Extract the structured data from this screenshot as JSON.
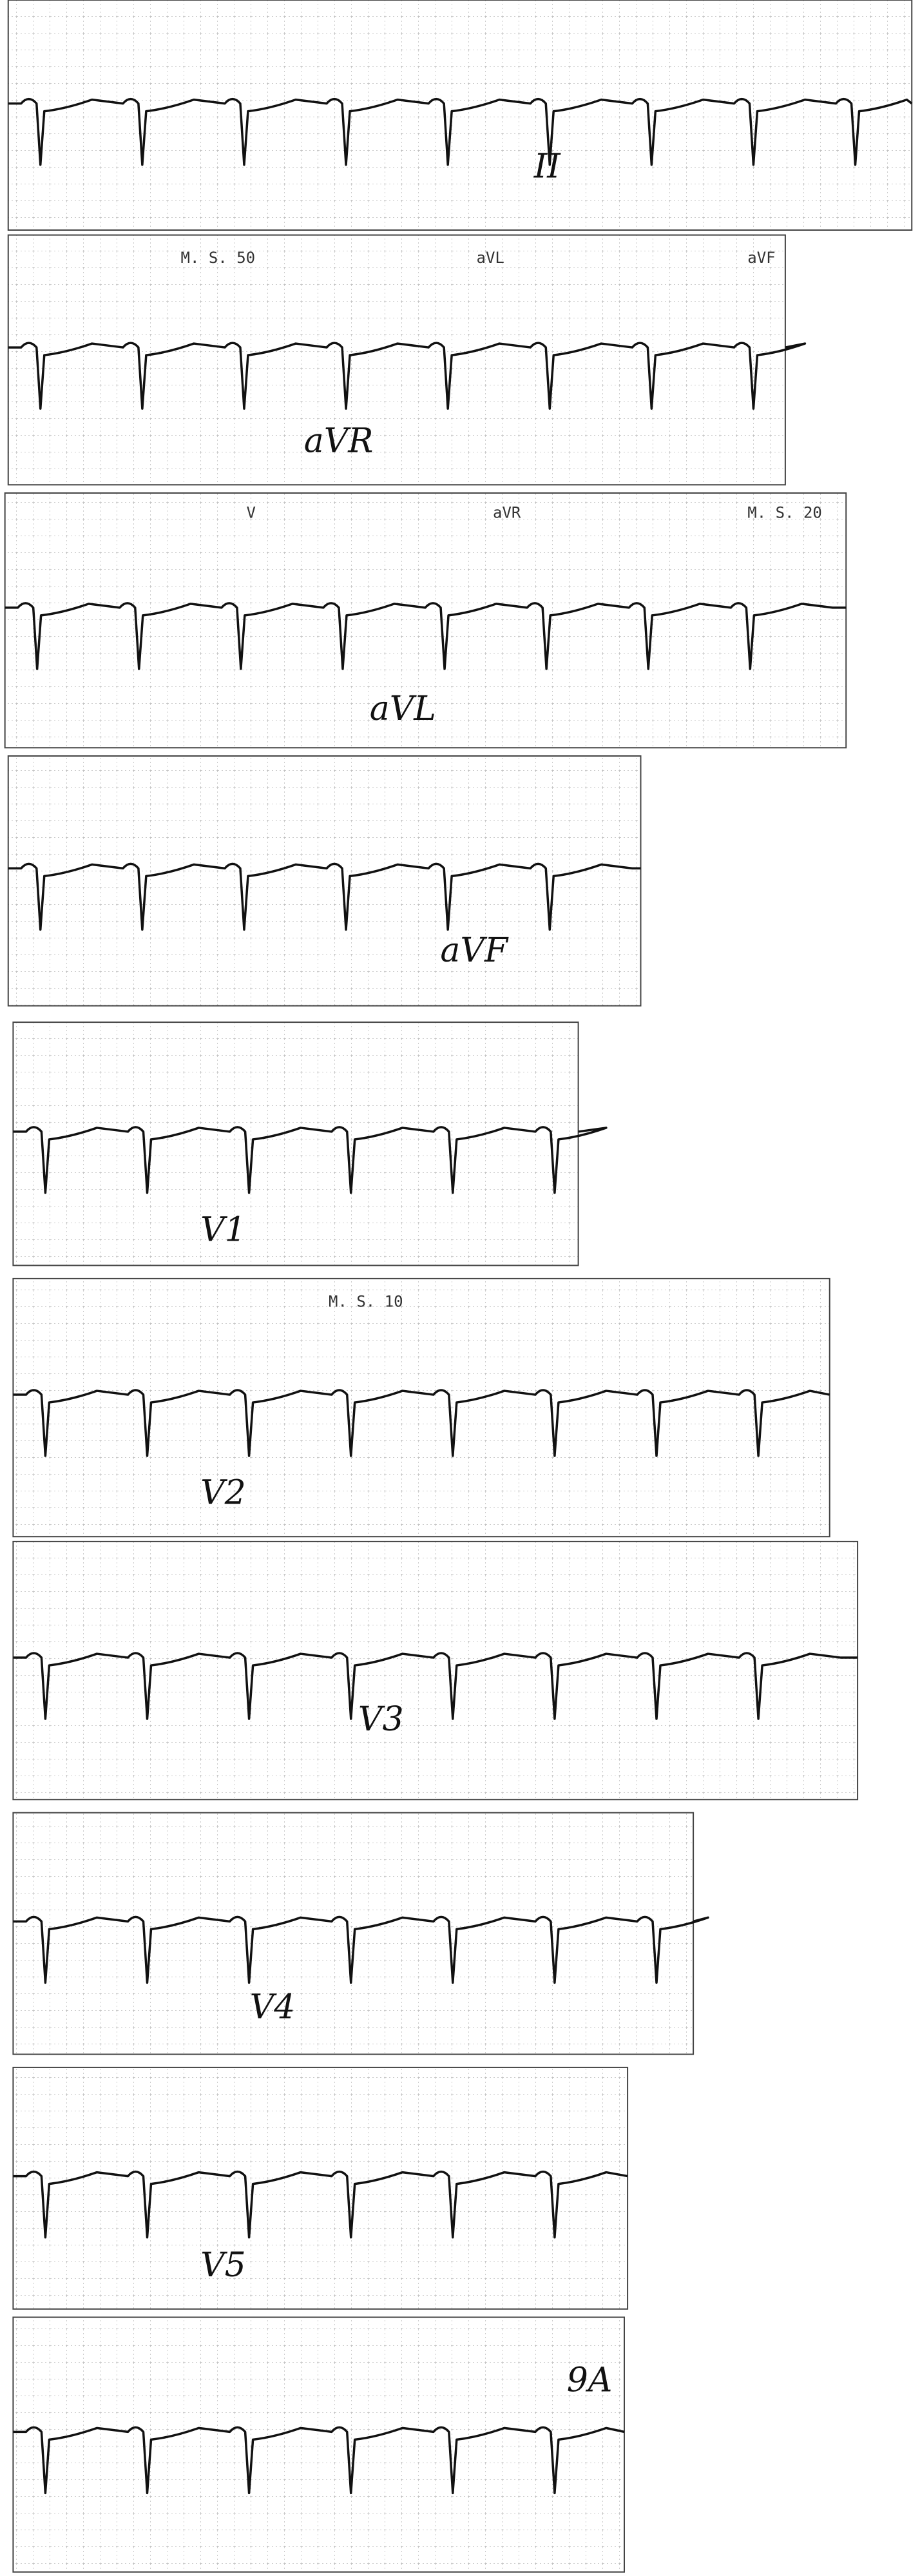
{
  "strips": [
    {
      "label": "II"
    },
    {
      "label": "aVR",
      "headers": [
        "M. S. 50",
        "aVL",
        "aVF"
      ]
    },
    {
      "label": "aVL",
      "headers": [
        "V",
        "aVR",
        "M. S. 20"
      ]
    },
    {
      "label": "aVF"
    },
    {
      "label": "V1"
    },
    {
      "label": "V2",
      "headers": [
        "M. S. 10"
      ]
    },
    {
      "label": "V3"
    },
    {
      "label": "V4"
    },
    {
      "label": "V5"
    },
    {
      "label": "9A"
    }
  ]
}
